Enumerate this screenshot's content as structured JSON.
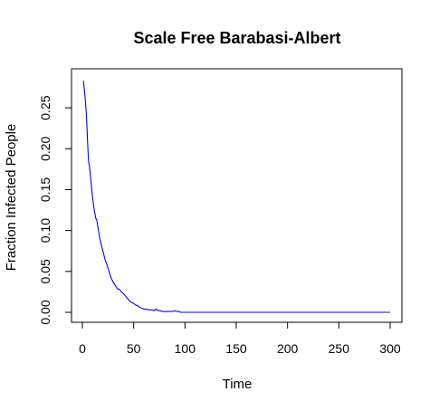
{
  "chart_data": {
    "type": "line",
    "title": "Scale Free Barabasi-Albert",
    "xlabel": "Time",
    "ylabel": "Fraction Infected People",
    "xlim": [
      0,
      300
    ],
    "ylim": [
      0,
      0.28
    ],
    "x_ticks": [
      {
        "value": 0,
        "label": "0"
      },
      {
        "value": 50,
        "label": "50"
      },
      {
        "value": 100,
        "label": "100"
      },
      {
        "value": 150,
        "label": "150"
      },
      {
        "value": 200,
        "label": "200"
      },
      {
        "value": 250,
        "label": "250"
      },
      {
        "value": 300,
        "label": "300"
      }
    ],
    "y_ticks": [
      {
        "value": 0,
        "label": "0.00"
      },
      {
        "value": 0.05,
        "label": "0.05"
      },
      {
        "value": 0.1,
        "label": "0.10"
      },
      {
        "value": 0.15,
        "label": "0.15"
      },
      {
        "value": 0.2,
        "label": "0.20"
      },
      {
        "value": 0.25,
        "label": "0.25"
      }
    ],
    "grid": false,
    "series": [
      {
        "color": "#0000ff",
        "x": [
          1,
          2,
          3,
          4,
          5,
          6,
          7,
          8,
          9,
          10,
          11,
          12,
          13,
          14,
          15,
          16,
          17,
          18,
          19,
          20,
          22,
          24,
          26,
          28,
          30,
          32,
          34,
          36,
          38,
          40,
          42,
          44,
          46,
          48,
          50,
          52,
          54,
          56,
          58,
          60,
          62,
          65,
          68,
          70,
          72,
          74,
          76,
          78,
          80,
          82,
          85,
          88,
          90,
          92,
          94,
          96,
          98,
          100,
          110,
          120,
          150,
          200,
          250,
          300
        ],
        "y": [
          0.283,
          0.272,
          0.258,
          0.24,
          0.21,
          0.185,
          0.178,
          0.165,
          0.152,
          0.14,
          0.13,
          0.122,
          0.115,
          0.113,
          0.105,
          0.098,
          0.09,
          0.085,
          0.08,
          0.075,
          0.065,
          0.058,
          0.05,
          0.042,
          0.037,
          0.033,
          0.029,
          0.028,
          0.025,
          0.023,
          0.02,
          0.017,
          0.014,
          0.012,
          0.011,
          0.009,
          0.008,
          0.006,
          0.005,
          0.004,
          0.004,
          0.003,
          0.003,
          0.002,
          0.004,
          0.002,
          0.002,
          0.001,
          0.001,
          0.001,
          0.001,
          0.001,
          0.002,
          0.001,
          0.001,
          0.0,
          0.0,
          0.0,
          0.0,
          0.0,
          0.0,
          0.0,
          0.0,
          0.0
        ]
      }
    ]
  }
}
